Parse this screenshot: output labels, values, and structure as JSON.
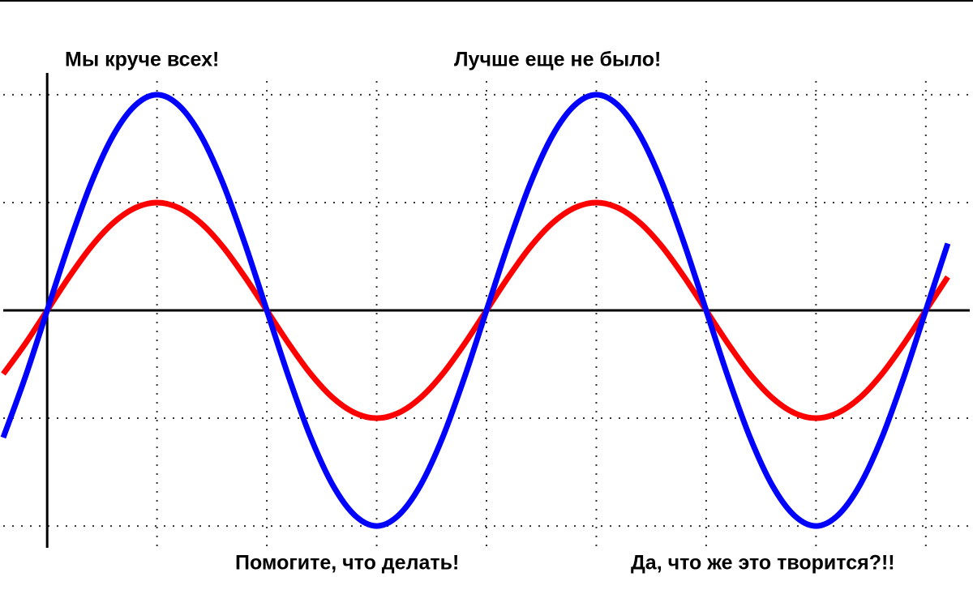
{
  "chart_data": {
    "type": "line",
    "annotations": [
      "Мы круче всех!",
      "Лучше еще не было!",
      "Помогите, что делать!",
      "Да, что же это творится?!!"
    ],
    "x": [
      -0.4,
      -0.2,
      0,
      0.2,
      0.4,
      0.6,
      0.8,
      1,
      1.2,
      1.4,
      1.6,
      1.8,
      2,
      2.2,
      2.4,
      2.6,
      2.8,
      3,
      3.2,
      3.4,
      3.6,
      3.8,
      4,
      4.2,
      4.4,
      4.6,
      4.8,
      5,
      5.2,
      5.4,
      5.6,
      5.8,
      6,
      6.2,
      6.4,
      6.6,
      6.8,
      7,
      7.2,
      7.4,
      7.6,
      7.8,
      8,
      8.2
    ],
    "series": [
      {
        "color": "#ff0000",
        "values": [
          -0.59,
          -0.31,
          0,
          0.31,
          0.59,
          0.81,
          0.95,
          1,
          0.95,
          0.81,
          0.59,
          0.31,
          0,
          -0.31,
          -0.59,
          -0.81,
          -0.95,
          -1,
          -0.95,
          -0.81,
          -0.59,
          -0.31,
          0,
          0.31,
          0.59,
          0.81,
          0.95,
          1,
          0.95,
          0.81,
          0.59,
          0.31,
          0,
          -0.31,
          -0.59,
          -0.81,
          -0.95,
          -1,
          -0.95,
          -0.81,
          -0.59,
          -0.31,
          0,
          0.31
        ]
      },
      {
        "color": "#0000ff",
        "values": [
          -1.18,
          -0.62,
          0,
          0.62,
          1.18,
          1.62,
          1.9,
          2,
          1.9,
          1.62,
          1.18,
          0.62,
          0,
          -0.62,
          -1.18,
          -1.62,
          -1.9,
          -2,
          -1.9,
          -1.62,
          -1.18,
          -0.62,
          0,
          0.62,
          1.18,
          1.62,
          1.9,
          2,
          1.9,
          1.62,
          1.18,
          0.62,
          0,
          -0.62,
          -1.18,
          -1.62,
          -1.9,
          -2,
          -1.9,
          -1.62,
          -1.18,
          -0.62,
          0,
          0.62
        ]
      }
    ],
    "xlim": [
      -0.4,
      8.4
    ],
    "xticks": [
      1,
      2,
      3,
      4,
      5,
      6,
      7,
      8
    ],
    "ylim": [
      -2.3,
      2.3
    ],
    "yticks": [
      -2,
      -1,
      1,
      2
    ],
    "grid": true
  }
}
